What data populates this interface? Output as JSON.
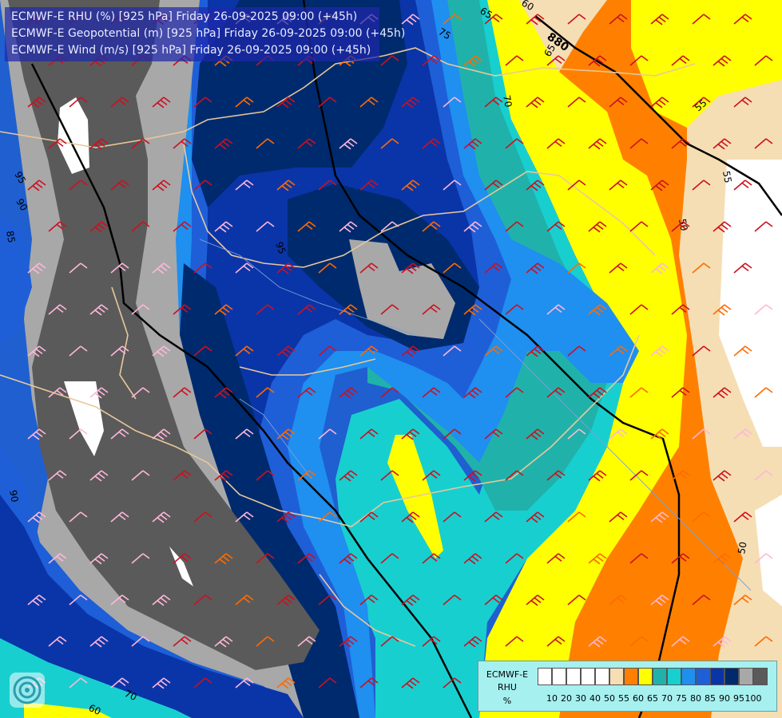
{
  "header": {
    "line1": "ECMWF-E RHU (%) [925 hPa] Friday 26-09-2025 09:00 (+45h)",
    "line2": "ECMWF-E Geopotential (m) [925 hPa] Friday 26-09-2025 09:00 (+45h)",
    "line3": "ECMWF-E Wind (m/s) [925 hPa] Friday 26-09-2025 09:00 (+45h)"
  },
  "legend": {
    "model": "ECMWF-E",
    "variable": "RHU",
    "unit": "%",
    "ticks": [
      "10",
      "20",
      "30",
      "40",
      "50",
      "55",
      "60",
      "65",
      "70",
      "75",
      "80",
      "85",
      "90",
      "95",
      "100"
    ],
    "colors": [
      "#ffffff",
      "#ffffff",
      "#ffffff",
      "#ffffff",
      "#ffffff",
      "#f5deb3",
      "#ff8000",
      "#ffff00",
      "#20b2aa",
      "#18cfd0",
      "#1f8ff0",
      "#1e5fd8",
      "#0a35a8",
      "#002a6e",
      "#a8a8a8",
      "#5a5a5a"
    ]
  },
  "contours": {
    "geopotential_labels": [
      "880"
    ],
    "rhu_labels": [
      "95",
      "90",
      "85",
      "75",
      "70",
      "65",
      "60",
      "55",
      "50",
      "60",
      "70",
      "65",
      "50",
      "55",
      "90",
      "95"
    ]
  },
  "colors": {
    "dry": "#ffffff",
    "rhu55": "#f5deb3",
    "rhu60": "#ff8000",
    "rhu65": "#ffff00",
    "rhu70": "#20b2aa",
    "rhu75": "#18cfd0",
    "rhu80": "#1f8ff0",
    "rhu85": "#1e5fd8",
    "rhu90": "#0a35a8",
    "rhu95": "#002a6e",
    "rhu100": "#a8a8a8",
    "saturated": "#5a5a5a",
    "border": "#e8c89a"
  }
}
